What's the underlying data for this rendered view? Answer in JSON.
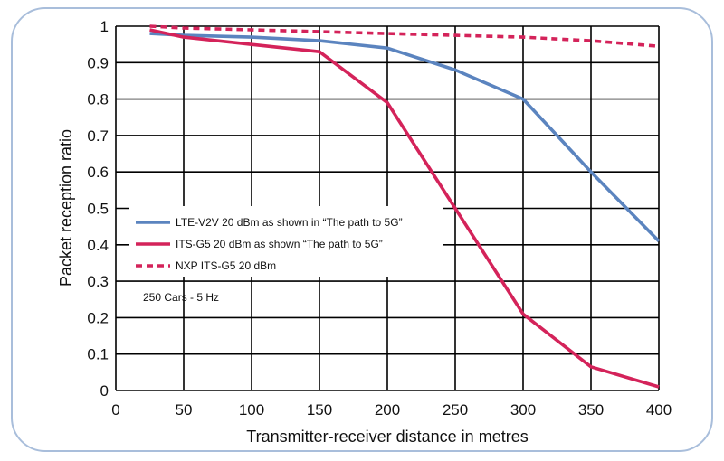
{
  "chart_data": {
    "type": "line",
    "xlabel": "Transmitter-receiver distance in metres",
    "ylabel": "Packet reception ratio",
    "xlim": [
      0,
      400
    ],
    "ylim": [
      0,
      1
    ],
    "xticks": [
      0,
      50,
      100,
      150,
      200,
      250,
      300,
      350,
      400
    ],
    "yticks": [
      0,
      0.1,
      0.2,
      0.3,
      0.4,
      0.5,
      0.6,
      0.7,
      0.8,
      0.9,
      1
    ],
    "xtick_labels": [
      "0",
      "50",
      "100",
      "150",
      "200",
      "250",
      "300",
      "350",
      "400"
    ],
    "ytick_labels": [
      "0",
      "0.1",
      "0.2",
      "0.3",
      "0.4",
      "0.5",
      "0.6",
      "0.7",
      "0.8",
      "0.9",
      "1"
    ],
    "grid": true,
    "legend_position": "middle-left",
    "annotation": "250 Cars - 5 Hz",
    "series": [
      {
        "name": "LTE-V2V 20 dBm as shown in “The path to 5G”",
        "color": "#5b84bf",
        "style": "solid",
        "x": [
          25,
          50,
          100,
          150,
          200,
          250,
          300,
          350,
          400
        ],
        "y": [
          0.98,
          0.975,
          0.97,
          0.96,
          0.94,
          0.88,
          0.8,
          0.6,
          0.41
        ]
      },
      {
        "name": "ITS-G5 20 dBm as shown “The path to 5G”",
        "color": "#d4235a",
        "style": "solid",
        "x": [
          25,
          50,
          100,
          150,
          200,
          250,
          300,
          350,
          400
        ],
        "y": [
          0.99,
          0.97,
          0.95,
          0.93,
          0.79,
          0.5,
          0.21,
          0.065,
          0.01
        ]
      },
      {
        "name": "NXP ITS-G5 20 dBm",
        "color": "#d4235a",
        "style": "dashed",
        "x": [
          25,
          50,
          100,
          150,
          200,
          250,
          300,
          350,
          400
        ],
        "y": [
          1.0,
          0.995,
          0.99,
          0.985,
          0.98,
          0.975,
          0.97,
          0.96,
          0.945
        ]
      }
    ]
  }
}
